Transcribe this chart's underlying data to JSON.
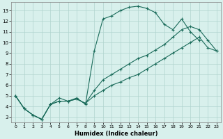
{
  "xlabel": "Humidex (Indice chaleur)",
  "xlim": [
    -0.5,
    23.5
  ],
  "ylim": [
    2.5,
    13.8
  ],
  "xticks": [
    0,
    1,
    2,
    3,
    4,
    5,
    6,
    7,
    8,
    9,
    10,
    11,
    12,
    13,
    14,
    15,
    16,
    17,
    18,
    19,
    20,
    21,
    22,
    23
  ],
  "yticks": [
    3,
    4,
    5,
    6,
    7,
    8,
    9,
    10,
    11,
    12,
    13
  ],
  "bg_color": "#d8f0ec",
  "grid_color": "#b0d4ce",
  "line_color": "#1a6b5a",
  "line1_x": [
    0,
    1,
    2,
    3,
    4,
    5,
    6,
    7,
    8,
    9,
    10,
    11,
    12,
    13,
    14,
    15,
    16,
    17,
    18,
    19,
    20,
    21
  ],
  "line1_y": [
    5.0,
    3.8,
    3.2,
    2.8,
    4.2,
    4.8,
    4.5,
    4.8,
    4.2,
    9.2,
    12.2,
    12.5,
    13.0,
    13.3,
    13.4,
    13.2,
    12.8,
    11.7,
    11.2,
    12.2,
    11.0,
    10.2
  ],
  "line2_x": [
    0,
    1,
    2,
    3,
    4,
    5,
    6,
    7,
    8,
    9,
    10,
    11,
    12,
    13,
    14,
    15,
    16,
    17,
    18,
    19,
    20,
    21,
    22,
    23
  ],
  "line2_y": [
    5.0,
    3.8,
    3.2,
    2.8,
    4.2,
    4.5,
    4.5,
    4.7,
    4.3,
    5.5,
    6.5,
    7.0,
    7.5,
    8.0,
    8.5,
    8.8,
    9.3,
    9.8,
    10.5,
    11.2,
    11.5,
    11.2,
    10.2,
    9.2
  ],
  "line3_x": [
    0,
    1,
    2,
    3,
    4,
    5,
    6,
    7,
    8,
    9,
    10,
    11,
    12,
    13,
    14,
    15,
    16,
    17,
    18,
    19,
    20,
    21,
    22,
    23
  ],
  "line3_y": [
    5.0,
    3.8,
    3.2,
    2.8,
    4.2,
    4.5,
    4.5,
    4.7,
    4.3,
    5.0,
    5.5,
    6.0,
    6.3,
    6.7,
    7.0,
    7.5,
    8.0,
    8.5,
    9.0,
    9.5,
    10.0,
    10.5,
    9.5,
    9.2
  ]
}
